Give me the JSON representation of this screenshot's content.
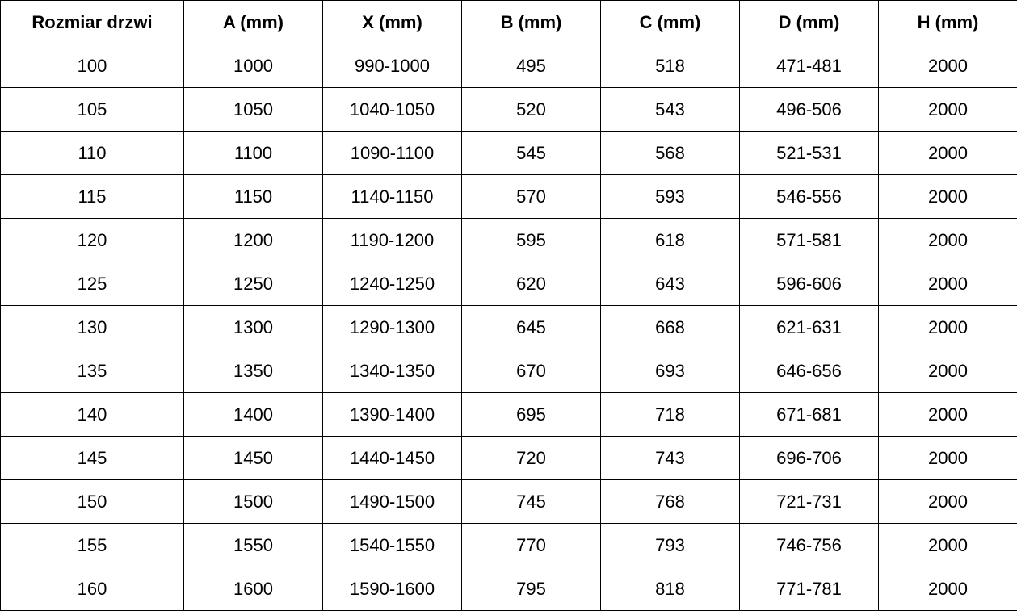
{
  "table": {
    "headers": [
      "Rozmiar drzwi",
      "A (mm)",
      "X (mm)",
      "B (mm)",
      "C (mm)",
      "D (mm)",
      "H (mm)"
    ],
    "rows": [
      [
        "100",
        "1000",
        "990-1000",
        "495",
        "518",
        "471-481",
        "2000"
      ],
      [
        "105",
        "1050",
        "1040-1050",
        "520",
        "543",
        "496-506",
        "2000"
      ],
      [
        "110",
        "1100",
        "1090-1100",
        "545",
        "568",
        "521-531",
        "2000"
      ],
      [
        "115",
        "1150",
        "1140-1150",
        "570",
        "593",
        "546-556",
        "2000"
      ],
      [
        "120",
        "1200",
        "1190-1200",
        "595",
        "618",
        "571-581",
        "2000"
      ],
      [
        "125",
        "1250",
        "1240-1250",
        "620",
        "643",
        "596-606",
        "2000"
      ],
      [
        "130",
        "1300",
        "1290-1300",
        "645",
        "668",
        "621-631",
        "2000"
      ],
      [
        "135",
        "1350",
        "1340-1350",
        "670",
        "693",
        "646-656",
        "2000"
      ],
      [
        "140",
        "1400",
        "1390-1400",
        "695",
        "718",
        "671-681",
        "2000"
      ],
      [
        "145",
        "1450",
        "1440-1450",
        "720",
        "743",
        "696-706",
        "2000"
      ],
      [
        "150",
        "1500",
        "1490-1500",
        "745",
        "768",
        "721-731",
        "2000"
      ],
      [
        "155",
        "1550",
        "1540-1550",
        "770",
        "793",
        "746-756",
        "2000"
      ],
      [
        "160",
        "1600",
        "1590-1600",
        "795",
        "818",
        "771-781",
        "2000"
      ]
    ]
  }
}
